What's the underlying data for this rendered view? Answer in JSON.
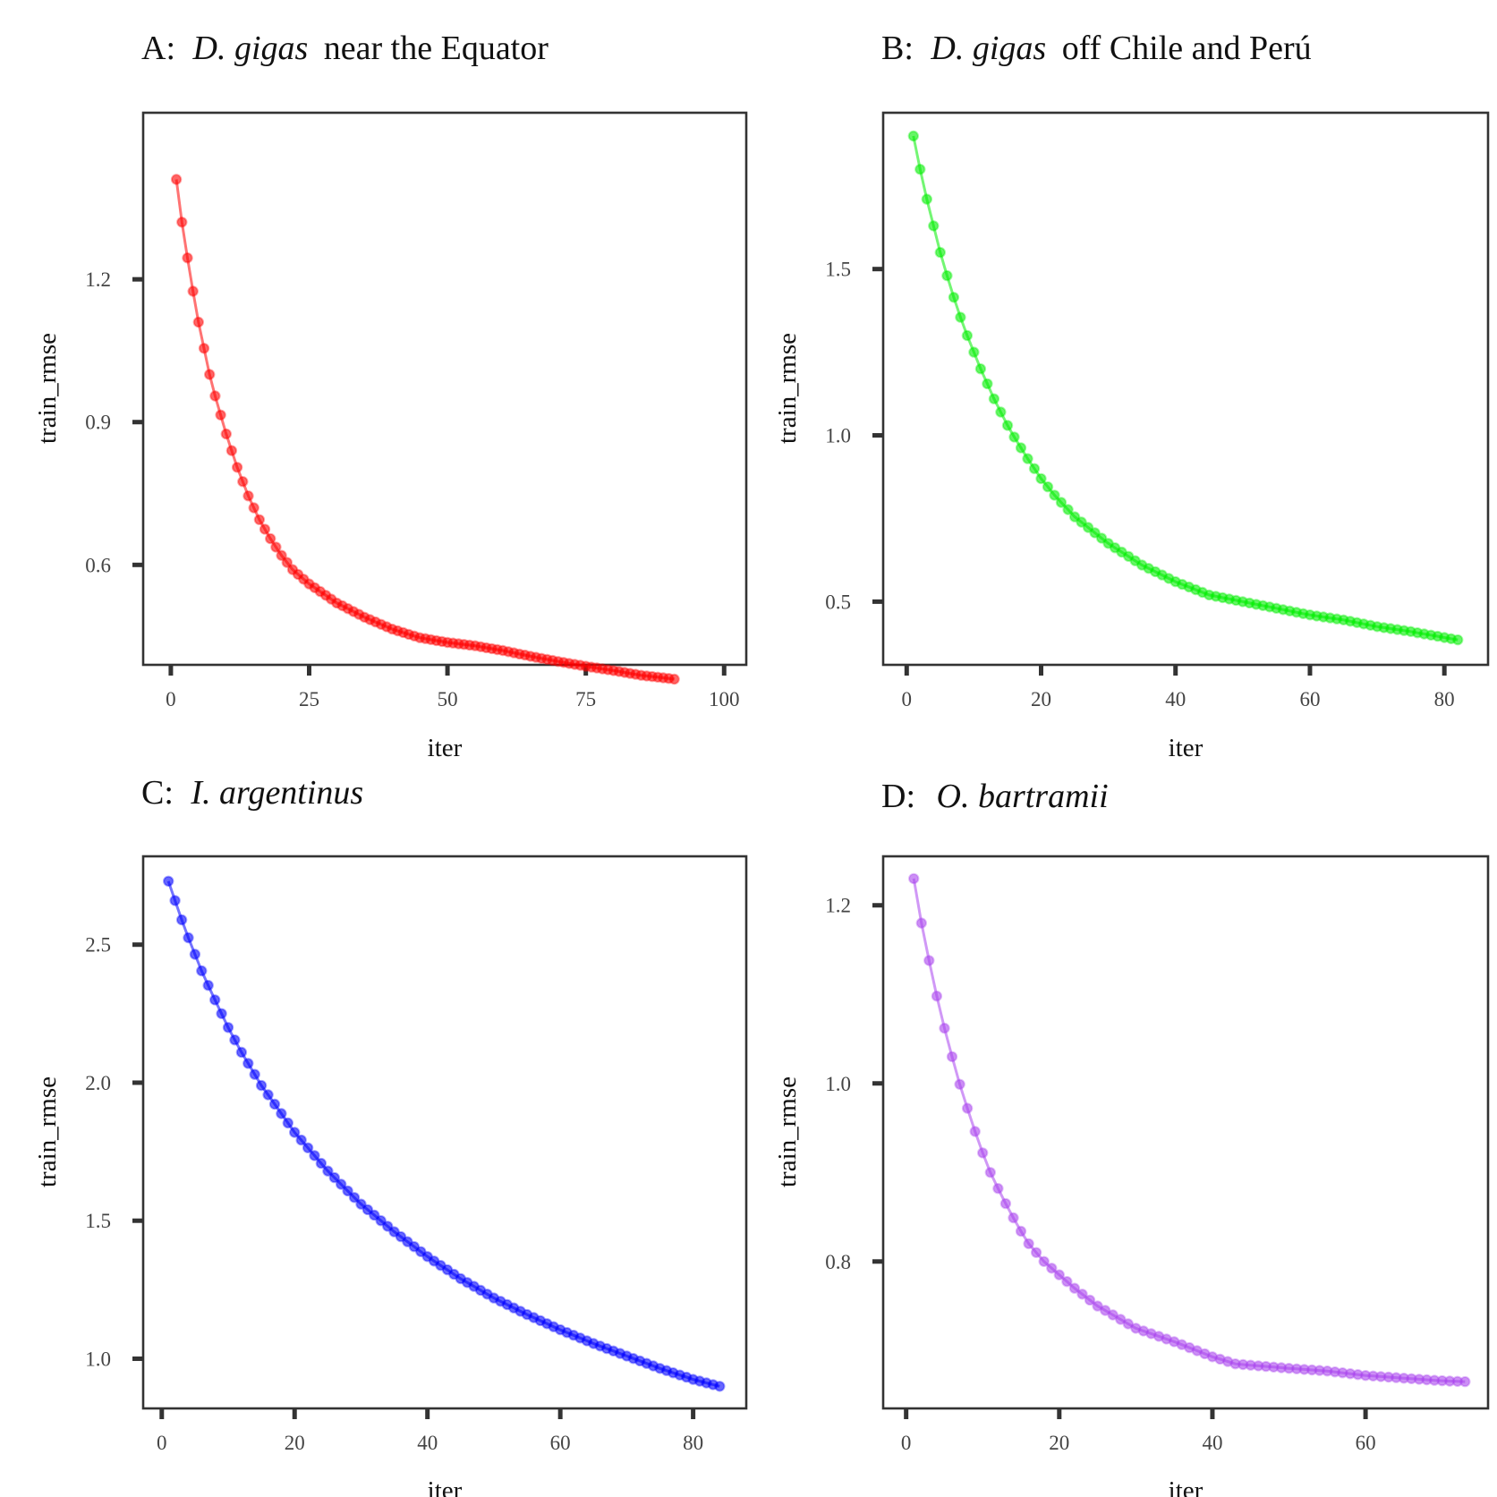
{
  "chart_data": [
    {
      "type": "line",
      "panel_letter": "A:",
      "title_italic": "D. gigas",
      "title_rest": "near the Equator",
      "xlabel": "iter",
      "ylabel": "train_rmse",
      "xlim": [
        -5,
        104
      ],
      "ylim": [
        0.39,
        1.55
      ],
      "xticks": [
        0,
        25,
        50,
        75,
        100
      ],
      "yticks": [
        0.6,
        0.9,
        1.2
      ],
      "ytick_labels": [
        "0.6",
        "0.9",
        "1.2"
      ],
      "color": "#ff0000",
      "grid": false,
      "n_points": 91,
      "x": [
        1,
        91
      ],
      "anchors": [
        [
          1,
          1.41
        ],
        [
          2,
          1.32
        ],
        [
          3,
          1.245
        ],
        [
          4,
          1.175
        ],
        [
          5,
          1.11
        ],
        [
          6,
          1.055
        ],
        [
          7,
          1.0
        ],
        [
          8,
          0.955
        ],
        [
          9,
          0.915
        ],
        [
          10,
          0.875
        ],
        [
          11,
          0.84
        ],
        [
          12,
          0.805
        ],
        [
          13,
          0.775
        ],
        [
          14,
          0.745
        ],
        [
          15,
          0.72
        ],
        [
          16,
          0.695
        ],
        [
          18,
          0.655
        ],
        [
          20,
          0.62
        ],
        [
          22,
          0.59
        ],
        [
          25,
          0.56
        ],
        [
          30,
          0.52
        ],
        [
          35,
          0.49
        ],
        [
          40,
          0.465
        ],
        [
          45,
          0.447
        ],
        [
          50,
          0.437
        ],
        [
          55,
          0.43
        ],
        [
          60,
          0.42
        ],
        [
          65,
          0.408
        ],
        [
          70,
          0.397
        ],
        [
          75,
          0.387
        ],
        [
          80,
          0.378
        ],
        [
          85,
          0.368
        ],
        [
          91,
          0.36
        ]
      ]
    },
    {
      "type": "line",
      "panel_letter": "B:",
      "title_italic": "D. gigas",
      "title_rest": "off Chile and Perú",
      "xlabel": "iter",
      "ylabel": "train_rmse",
      "xlim": [
        -3.5,
        86.5
      ],
      "ylim": [
        0.31,
        1.97
      ],
      "xticks": [
        0,
        20,
        40,
        60,
        80
      ],
      "yticks": [
        0.5,
        1.0,
        1.5
      ],
      "ytick_labels": [
        "0.5",
        "1.0",
        "1.5"
      ],
      "color": "#00ee00",
      "grid": false,
      "n_points": 82,
      "x": [
        1,
        82
      ],
      "anchors": [
        [
          1,
          1.9
        ],
        [
          2,
          1.8
        ],
        [
          3,
          1.71
        ],
        [
          4,
          1.63
        ],
        [
          5,
          1.55
        ],
        [
          6,
          1.48
        ],
        [
          7,
          1.415
        ],
        [
          8,
          1.355
        ],
        [
          9,
          1.3
        ],
        [
          10,
          1.25
        ],
        [
          11,
          1.2
        ],
        [
          12,
          1.155
        ],
        [
          13,
          1.11
        ],
        [
          14,
          1.07
        ],
        [
          15,
          1.03
        ],
        [
          16,
          0.995
        ],
        [
          18,
          0.93
        ],
        [
          20,
          0.87
        ],
        [
          22,
          0.82
        ],
        [
          25,
          0.755
        ],
        [
          30,
          0.675
        ],
        [
          35,
          0.61
        ],
        [
          40,
          0.56
        ],
        [
          45,
          0.52
        ],
        [
          50,
          0.5
        ],
        [
          55,
          0.48
        ],
        [
          60,
          0.46
        ],
        [
          65,
          0.445
        ],
        [
          70,
          0.425
        ],
        [
          75,
          0.41
        ],
        [
          82,
          0.385
        ]
      ]
    },
    {
      "type": "line",
      "panel_letter": "C:",
      "title_italic": "I. argentinus",
      "title_rest": "",
      "xlabel": "iter",
      "ylabel": "train_rmse",
      "xlim": [
        -2.8,
        88
      ],
      "ylim": [
        0.82,
        2.82
      ],
      "xticks": [
        0,
        20,
        40,
        60,
        80
      ],
      "yticks": [
        1.0,
        1.5,
        2.0,
        2.5
      ],
      "ytick_labels": [
        "1.0",
        "1.5",
        "2.0",
        "2.5"
      ],
      "color": "#0000ff",
      "grid": false,
      "n_points": 84,
      "x": [
        1,
        84
      ],
      "anchors": [
        [
          1,
          2.73
        ],
        [
          2,
          2.66
        ],
        [
          3,
          2.59
        ],
        [
          4,
          2.525
        ],
        [
          5,
          2.465
        ],
        [
          6,
          2.405
        ],
        [
          8,
          2.3
        ],
        [
          10,
          2.2
        ],
        [
          12,
          2.11
        ],
        [
          15,
          1.99
        ],
        [
          20,
          1.82
        ],
        [
          25,
          1.68
        ],
        [
          30,
          1.56
        ],
        [
          35,
          1.46
        ],
        [
          40,
          1.37
        ],
        [
          45,
          1.29
        ],
        [
          50,
          1.22
        ],
        [
          55,
          1.16
        ],
        [
          60,
          1.105
        ],
        [
          65,
          1.055
        ],
        [
          70,
          1.01
        ],
        [
          75,
          0.965
        ],
        [
          80,
          0.925
        ],
        [
          84,
          0.9
        ]
      ]
    },
    {
      "type": "line",
      "panel_letter": "D:",
      "title_italic": "O. bartramii",
      "title_rest": "",
      "xlabel": "iter",
      "ylabel": "train_rmse",
      "xlim": [
        -3,
        76
      ],
      "ylim": [
        0.635,
        1.255
      ],
      "xticks": [
        0,
        20,
        40,
        60
      ],
      "yticks": [
        0.8,
        1.0,
        1.2
      ],
      "ytick_labels": [
        "0.8",
        "1.0",
        "1.2"
      ],
      "color": "#aa44ee",
      "grid": false,
      "n_points": 73,
      "x": [
        1,
        73
      ],
      "anchors": [
        [
          1,
          1.23
        ],
        [
          2,
          1.18
        ],
        [
          3,
          1.138
        ],
        [
          4,
          1.098
        ],
        [
          5,
          1.062
        ],
        [
          6,
          1.03
        ],
        [
          7,
          0.999
        ],
        [
          8,
          0.972
        ],
        [
          9,
          0.946
        ],
        [
          10,
          0.922
        ],
        [
          11,
          0.9
        ],
        [
          12,
          0.882
        ],
        [
          13,
          0.865
        ],
        [
          14,
          0.849
        ],
        [
          15,
          0.834
        ],
        [
          16,
          0.82
        ],
        [
          18,
          0.8
        ],
        [
          20,
          0.785
        ],
        [
          22,
          0.77
        ],
        [
          25,
          0.75
        ],
        [
          30,
          0.725
        ],
        [
          35,
          0.71
        ],
        [
          40,
          0.693
        ],
        [
          43,
          0.685
        ],
        [
          50,
          0.68
        ],
        [
          55,
          0.677
        ],
        [
          60,
          0.672
        ],
        [
          65,
          0.669
        ],
        [
          70,
          0.666
        ],
        [
          73,
          0.665
        ]
      ]
    }
  ]
}
